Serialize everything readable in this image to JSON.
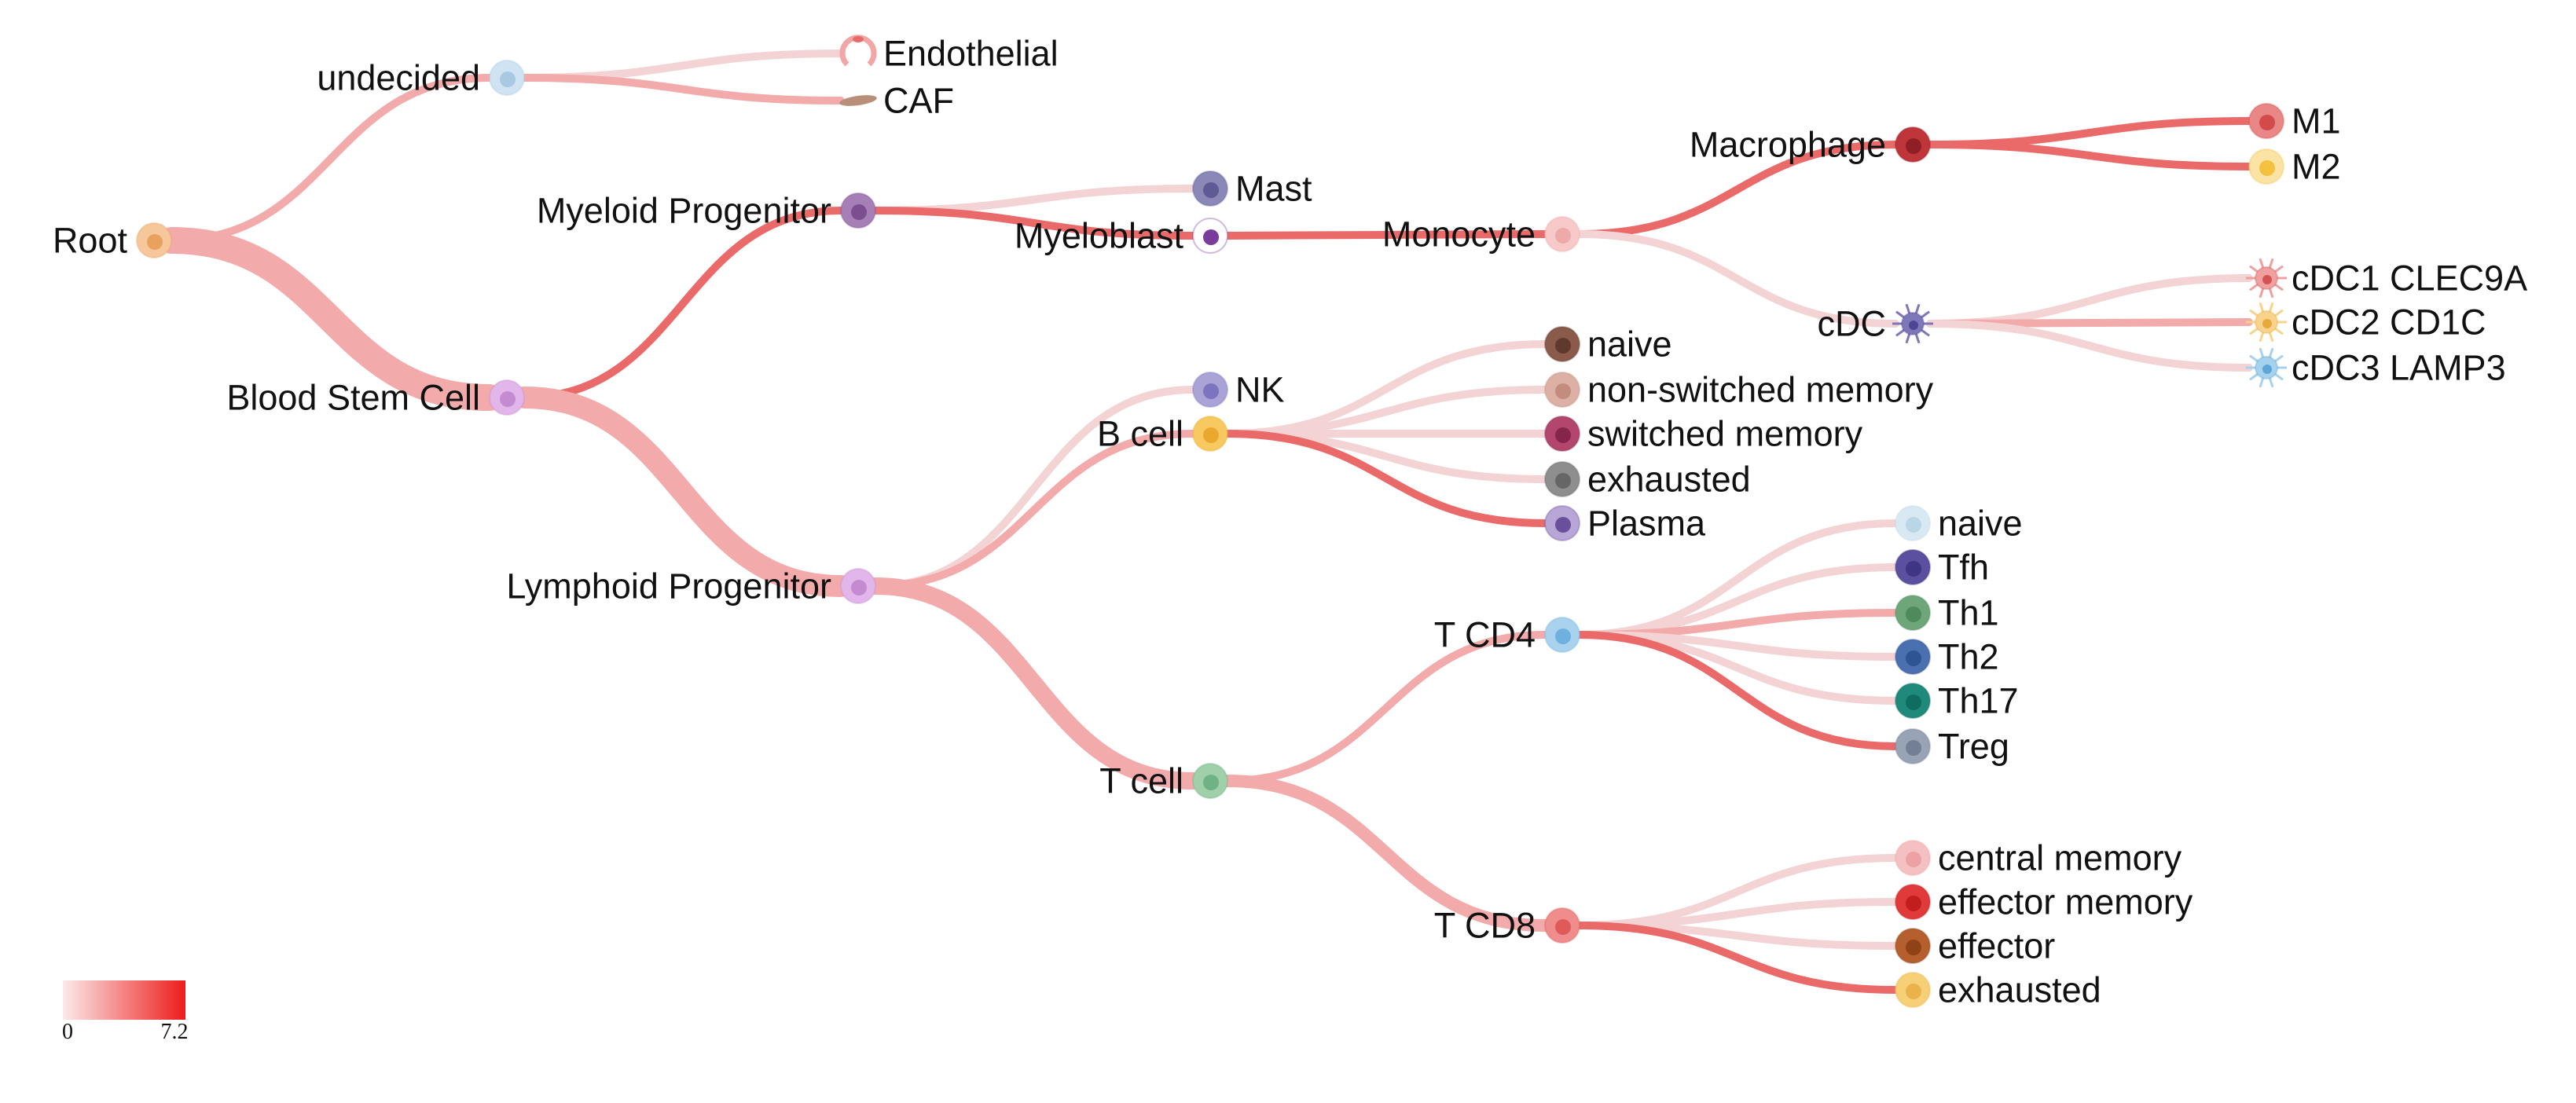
{
  "colors": {
    "edge_light": "#f3d3d3",
    "edge_mid": "#f2aaaa",
    "edge_strong": "#ea6a6a",
    "legend_low": "#fbeaea",
    "legend_high": "#ee1c1c"
  },
  "legend": {
    "min_label": "0",
    "max_label": "7.2"
  },
  "nodes": [
    {
      "id": "root",
      "label": "Root",
      "label_side": "left",
      "icon": "epithelial-cell-icon",
      "fill": "#f6c79b",
      "core": "#e9a25e"
    },
    {
      "id": "undecided",
      "label": "undecided",
      "label_side": "left",
      "icon": "epithelial-cell-icon",
      "fill": "#cfe3f2",
      "core": "#a9c9e2"
    },
    {
      "id": "endothelial",
      "label": "Endothelial",
      "label_side": "right",
      "icon": "endothelial-cell-icon",
      "fill": "#f2a6a6",
      "core": "#e86a6a"
    },
    {
      "id": "caf",
      "label": "CAF",
      "label_side": "right",
      "icon": "fibroblast-icon",
      "fill": "#b8907a",
      "core": "#8a6352"
    },
    {
      "id": "bsc",
      "label": "Blood Stem Cell",
      "label_side": "left",
      "icon": "stem-cell-icon",
      "fill": "#e2b6ea",
      "core": "#c48bd0"
    },
    {
      "id": "myprog",
      "label": "Myeloid Progenitor",
      "label_side": "left",
      "icon": "progenitor-cell-icon",
      "fill": "#a77fb7",
      "core": "#7c4e90"
    },
    {
      "id": "lyprog",
      "label": "Lymphoid Progenitor",
      "label_side": "left",
      "icon": "progenitor-cell-icon",
      "fill": "#e2b6ea",
      "core": "#c48bd0"
    },
    {
      "id": "mast",
      "label": "Mast",
      "label_side": "right",
      "icon": "mast-cell-icon",
      "fill": "#8b88b8",
      "core": "#5d5a94"
    },
    {
      "id": "myeloblast",
      "label": "Myeloblast",
      "label_side": "left",
      "icon": "myeloblast-icon",
      "fill": "#ffffff",
      "core": "#7a3c9c"
    },
    {
      "id": "monocyte",
      "label": "Monocyte",
      "label_side": "left",
      "icon": "monocyte-icon",
      "fill": "#f7c9c9",
      "core": "#eea9a9"
    },
    {
      "id": "macrophage",
      "label": "Macrophage",
      "label_side": "left",
      "icon": "macrophage-icon",
      "fill": "#c0353a",
      "core": "#8e1f25"
    },
    {
      "id": "cdc",
      "label": "cDC",
      "label_side": "left",
      "icon": "dendritic-cell-icon",
      "fill": "#7f78b8",
      "core": "#4d4694"
    },
    {
      "id": "m1",
      "label": "M1",
      "label_side": "right",
      "icon": "macrophage-icon",
      "fill": "#e98686",
      "core": "#d34a4a"
    },
    {
      "id": "m2",
      "label": "M2",
      "label_side": "right",
      "icon": "macrophage-icon",
      "fill": "#fbe3a6",
      "core": "#f4c23e"
    },
    {
      "id": "cdc1",
      "label": "cDC1 CLEC9A",
      "label_side": "right",
      "icon": "dendritic-cell-icon",
      "fill": "#f0a0a0",
      "core": "#d45454"
    },
    {
      "id": "cdc2",
      "label": "cDC2 CD1C",
      "label_side": "right",
      "icon": "dendritic-cell-icon",
      "fill": "#f8d38b",
      "core": "#e8a93c"
    },
    {
      "id": "cdc3",
      "label": "cDC3 LAMP3",
      "label_side": "right",
      "icon": "dendritic-cell-icon",
      "fill": "#a7d2ee",
      "core": "#5da6d6"
    },
    {
      "id": "nk",
      "label": "NK",
      "label_side": "right",
      "icon": "nk-cell-icon",
      "fill": "#aaa3d6",
      "core": "#7d74bf"
    },
    {
      "id": "bcell",
      "label": "B cell",
      "label_side": "left",
      "icon": "b-cell-icon",
      "fill": "#f8c960",
      "core": "#eaa92e"
    },
    {
      "id": "bnaive",
      "label": "naive",
      "label_side": "right",
      "icon": "b-cell-icon",
      "fill": "#8a5a4b",
      "core": "#5e3a2e"
    },
    {
      "id": "bnsm",
      "label": "non-switched memory",
      "label_side": "right",
      "icon": "b-cell-icon",
      "fill": "#dcb0a4",
      "core": "#c28c7e"
    },
    {
      "id": "bsm",
      "label": "switched memory",
      "label_side": "right",
      "icon": "b-cell-icon",
      "fill": "#b2466d",
      "core": "#85254b"
    },
    {
      "id": "bexh",
      "label": "exhausted",
      "label_side": "right",
      "icon": "b-cell-icon",
      "fill": "#8e8e8e",
      "core": "#666666"
    },
    {
      "id": "plasma",
      "label": "Plasma",
      "label_side": "right",
      "icon": "plasma-cell-icon",
      "fill": "#b8a7d6",
      "core": "#6a4f9c"
    },
    {
      "id": "tcell",
      "label": "T cell",
      "label_side": "left",
      "icon": "t-cell-icon",
      "fill": "#9fd0aa",
      "core": "#6fb283"
    },
    {
      "id": "tcd4",
      "label": "T CD4",
      "label_side": "left",
      "icon": "t-cell-icon",
      "fill": "#a9d2ee",
      "core": "#6fb1de"
    },
    {
      "id": "tcd8",
      "label": "T CD8",
      "label_side": "left",
      "icon": "t-cell-icon",
      "fill": "#ef8d8d",
      "core": "#e05a5a"
    },
    {
      "id": "t4naive",
      "label": "naive",
      "label_side": "right",
      "icon": "t-cell-icon",
      "fill": "#d8e9f3",
      "core": "#b9d6e6"
    },
    {
      "id": "tfh",
      "label": "Tfh",
      "label_side": "right",
      "icon": "t-cell-icon",
      "fill": "#5b4fa0",
      "core": "#3f3585"
    },
    {
      "id": "th1",
      "label": "Th1",
      "label_side": "right",
      "icon": "t-cell-icon",
      "fill": "#6ea67a",
      "core": "#4e8a5c"
    },
    {
      "id": "th2",
      "label": "Th2",
      "label_side": "right",
      "icon": "t-cell-icon",
      "fill": "#4a70b0",
      "core": "#2f5394"
    },
    {
      "id": "th17",
      "label": "Th17",
      "label_side": "right",
      "icon": "t-cell-icon",
      "fill": "#1f8a7c",
      "core": "#0f6c60"
    },
    {
      "id": "treg",
      "label": "Treg",
      "label_side": "right",
      "icon": "t-cell-icon",
      "fill": "#98a4b6",
      "core": "#727f94"
    },
    {
      "id": "t8cm",
      "label": "central memory",
      "label_side": "right",
      "icon": "t-cell-icon",
      "fill": "#f5c0c2",
      "core": "#eca2a5"
    },
    {
      "id": "t8em",
      "label": "effector memory",
      "label_side": "right",
      "icon": "t-cell-icon",
      "fill": "#e13a3a",
      "core": "#c21e1e"
    },
    {
      "id": "t8eff",
      "label": "effector",
      "label_side": "right",
      "icon": "t-cell-icon",
      "fill": "#b55f2e",
      "core": "#8f4216"
    },
    {
      "id": "t8exh",
      "label": "exhausted",
      "label_side": "right",
      "icon": "t-cell-icon",
      "fill": "#f7cf76",
      "core": "#eab24a"
    }
  ],
  "edges": [
    {
      "from": "root",
      "to": "undecided",
      "level": "mid",
      "weight": 1
    },
    {
      "from": "root",
      "to": "bsc",
      "level": "mid",
      "weight": 5
    },
    {
      "from": "undecided",
      "to": "endothelial",
      "level": "light",
      "weight": 1
    },
    {
      "from": "undecided",
      "to": "caf",
      "level": "mid",
      "weight": 1
    },
    {
      "from": "bsc",
      "to": "myprog",
      "level": "strong",
      "weight": 1
    },
    {
      "from": "bsc",
      "to": "lyprog",
      "level": "mid",
      "weight": 4
    },
    {
      "from": "myprog",
      "to": "mast",
      "level": "light",
      "weight": 1
    },
    {
      "from": "myprog",
      "to": "myeloblast",
      "level": "strong",
      "weight": 1
    },
    {
      "from": "myeloblast",
      "to": "monocyte",
      "level": "strong",
      "weight": 1
    },
    {
      "from": "monocyte",
      "to": "macrophage",
      "level": "strong",
      "weight": 1
    },
    {
      "from": "monocyte",
      "to": "cdc",
      "level": "light",
      "weight": 1
    },
    {
      "from": "macrophage",
      "to": "m1",
      "level": "strong",
      "weight": 1
    },
    {
      "from": "macrophage",
      "to": "m2",
      "level": "strong",
      "weight": 1
    },
    {
      "from": "cdc",
      "to": "cdc1",
      "level": "light",
      "weight": 1
    },
    {
      "from": "cdc",
      "to": "cdc2",
      "level": "mid",
      "weight": 1
    },
    {
      "from": "cdc",
      "to": "cdc3",
      "level": "light",
      "weight": 1
    },
    {
      "from": "lyprog",
      "to": "nk",
      "level": "light",
      "weight": 1
    },
    {
      "from": "lyprog",
      "to": "bcell",
      "level": "mid",
      "weight": 1
    },
    {
      "from": "lyprog",
      "to": "tcell",
      "level": "mid",
      "weight": 3
    },
    {
      "from": "bcell",
      "to": "bnaive",
      "level": "light",
      "weight": 1
    },
    {
      "from": "bcell",
      "to": "bnsm",
      "level": "light",
      "weight": 1
    },
    {
      "from": "bcell",
      "to": "bsm",
      "level": "light",
      "weight": 1
    },
    {
      "from": "bcell",
      "to": "bexh",
      "level": "light",
      "weight": 1
    },
    {
      "from": "bcell",
      "to": "plasma",
      "level": "strong",
      "weight": 1
    },
    {
      "from": "tcell",
      "to": "tcd4",
      "level": "mid",
      "weight": 1
    },
    {
      "from": "tcell",
      "to": "tcd8",
      "level": "mid",
      "weight": 2
    },
    {
      "from": "tcd4",
      "to": "t4naive",
      "level": "light",
      "weight": 1
    },
    {
      "from": "tcd4",
      "to": "tfh",
      "level": "light",
      "weight": 1
    },
    {
      "from": "tcd4",
      "to": "th1",
      "level": "mid",
      "weight": 1
    },
    {
      "from": "tcd4",
      "to": "th2",
      "level": "light",
      "weight": 1
    },
    {
      "from": "tcd4",
      "to": "th17",
      "level": "light",
      "weight": 1
    },
    {
      "from": "tcd4",
      "to": "treg",
      "level": "strong",
      "weight": 1
    },
    {
      "from": "tcd8",
      "to": "t8cm",
      "level": "light",
      "weight": 1
    },
    {
      "from": "tcd8",
      "to": "t8em",
      "level": "light",
      "weight": 1
    },
    {
      "from": "tcd8",
      "to": "t8eff",
      "level": "light",
      "weight": 1
    },
    {
      "from": "tcd8",
      "to": "t8exh",
      "level": "strong",
      "weight": 1
    }
  ]
}
